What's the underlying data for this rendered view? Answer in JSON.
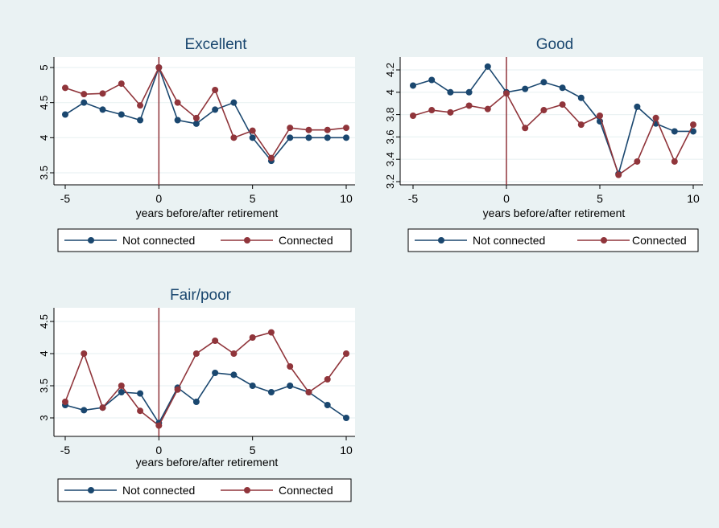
{
  "colors": {
    "background": "#eaf2f3",
    "panel_bg": "#ffffff",
    "not_connected": "#1a476f",
    "connected": "#90353b",
    "retirement_line": "#90353b",
    "grid": "#eaf2f3"
  },
  "chart_data": [
    {
      "type": "line",
      "title": "Excellent",
      "xlabel": "years before/after retirement",
      "ylabel": "",
      "x": [
        -5,
        -4,
        -3,
        -2,
        -1,
        0,
        1,
        2,
        3,
        4,
        5,
        6,
        7,
        8,
        9,
        10
      ],
      "xticks": [
        "-5",
        "0",
        "5",
        "10"
      ],
      "yticks": [
        "3.5",
        "4",
        "4.5",
        "5"
      ],
      "ylim": [
        3.4,
        5.1
      ],
      "xlim": [
        -5.5,
        10.5
      ],
      "reference_line_x": 0,
      "legend": {
        "position": "bottom",
        "entries": [
          "Not connected",
          "Connected"
        ]
      },
      "series": [
        {
          "name": "Not connected",
          "values": [
            4.33,
            4.5,
            4.4,
            4.33,
            4.25,
            5.0,
            4.25,
            4.2,
            4.4,
            4.5,
            4.0,
            3.67,
            4.0,
            4.0,
            4.0,
            4.0
          ]
        },
        {
          "name": "Connected",
          "values": [
            4.71,
            4.62,
            4.63,
            4.77,
            4.46,
            5.0,
            4.5,
            4.28,
            4.68,
            4.0,
            4.1,
            3.71,
            4.14,
            4.11,
            4.11,
            4.14
          ]
        }
      ]
    },
    {
      "type": "line",
      "title": "Good",
      "xlabel": "years before/after retirement",
      "ylabel": "",
      "x": [
        -5,
        -4,
        -3,
        -2,
        -1,
        0,
        1,
        2,
        3,
        4,
        5,
        6,
        7,
        8,
        9,
        10
      ],
      "xticks": [
        "-5",
        "0",
        "5",
        "10"
      ],
      "yticks": [
        "3.2",
        "3.4",
        "3.6",
        "3.8",
        "4",
        "4.2"
      ],
      "ylim": [
        3.15,
        4.3
      ],
      "xlim": [
        -5.5,
        10.5
      ],
      "reference_line_x": 0,
      "legend": {
        "position": "bottom",
        "entries": [
          "Not connected",
          "Connected"
        ]
      },
      "series": [
        {
          "name": "Not connected",
          "values": [
            4.06,
            4.11,
            4.0,
            4.0,
            4.23,
            4.0,
            4.03,
            4.09,
            4.04,
            3.95,
            3.74,
            3.27,
            3.87,
            3.72,
            3.65,
            3.65
          ]
        },
        {
          "name": "Connected",
          "values": [
            3.79,
            3.84,
            3.82,
            3.88,
            3.85,
            3.99,
            3.68,
            3.84,
            3.89,
            3.71,
            3.79,
            3.26,
            3.38,
            3.77,
            3.38,
            3.71
          ]
        }
      ]
    },
    {
      "type": "line",
      "title": "Fair/poor",
      "xlabel": "years before/after retirement",
      "ylabel": "",
      "x": [
        -5,
        -4,
        -3,
        -2,
        -1,
        0,
        1,
        2,
        3,
        4,
        5,
        6,
        7,
        8,
        9,
        10
      ],
      "xticks": [
        "-5",
        "0",
        "5",
        "10"
      ],
      "yticks": [
        "3",
        "3.5",
        "4",
        "4.5"
      ],
      "ylim": [
        2.8,
        4.6
      ],
      "xlim": [
        -5.5,
        10.5
      ],
      "reference_line_x": 0,
      "legend": {
        "position": "bottom",
        "entries": [
          "Not connected",
          "Connected"
        ]
      },
      "series": [
        {
          "name": "Not connected",
          "values": [
            3.2,
            3.12,
            3.16,
            3.4,
            3.38,
            2.92,
            3.47,
            3.25,
            3.7,
            3.67,
            3.5,
            3.4,
            3.5,
            3.4,
            3.2,
            3.0
          ]
        },
        {
          "name": "Connected",
          "values": [
            3.25,
            4.0,
            3.16,
            3.5,
            3.11,
            2.88,
            3.44,
            4.0,
            4.2,
            4.0,
            4.25,
            4.33,
            3.8,
            3.4,
            3.6,
            4.0
          ]
        }
      ]
    }
  ]
}
